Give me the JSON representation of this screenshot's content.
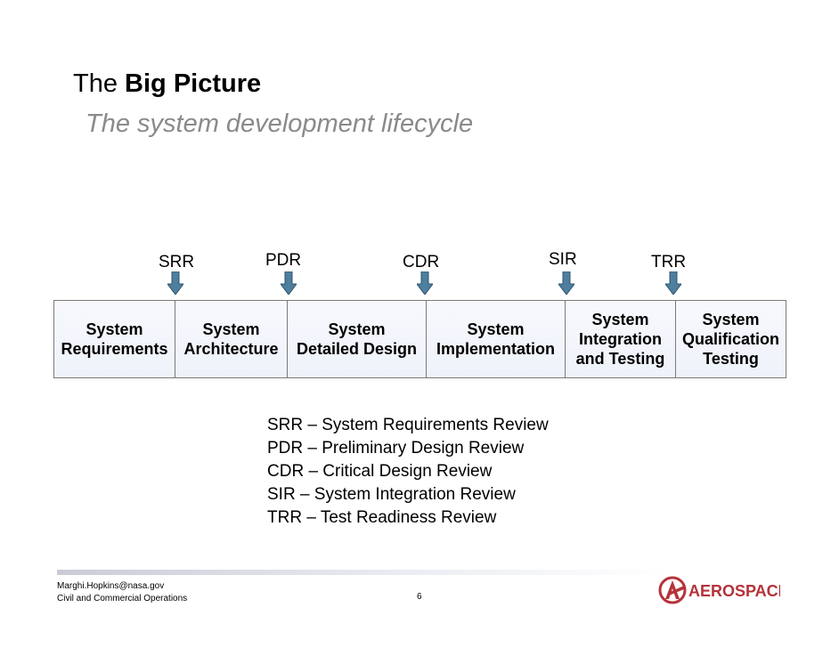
{
  "header": {
    "title_prefix": "The",
    "title_bold": "Big Picture",
    "subtitle": "The system development lifecycle"
  },
  "reviews": [
    {
      "label": "SRR"
    },
    {
      "label": "PDR"
    },
    {
      "label": "CDR"
    },
    {
      "label": "SIR"
    },
    {
      "label": "TRR"
    }
  ],
  "phases": [
    {
      "label": "System\nRequirements"
    },
    {
      "label": "System\nArchitecture"
    },
    {
      "label": "System\nDetailed Design"
    },
    {
      "label": "System\nImplementation"
    },
    {
      "label": "System\nIntegration\nand Testing"
    },
    {
      "label": "System\nQualification\nTesting"
    }
  ],
  "legend": [
    "SRR – System Requirements Review",
    "PDR – Preliminary Design Review",
    "CDR – Critical Design Review",
    "SIR – System Integration Review",
    "TRR – Test Readiness Review"
  ],
  "footer": {
    "email": "Marghi.Hopkins@nasa.gov",
    "department": "Civil and Commercial Operations",
    "page_number": "6",
    "logo_text": "AEROSPACE"
  },
  "colors": {
    "arrow_fill": "#4f7f9e",
    "logo_red": "#b5323a"
  }
}
